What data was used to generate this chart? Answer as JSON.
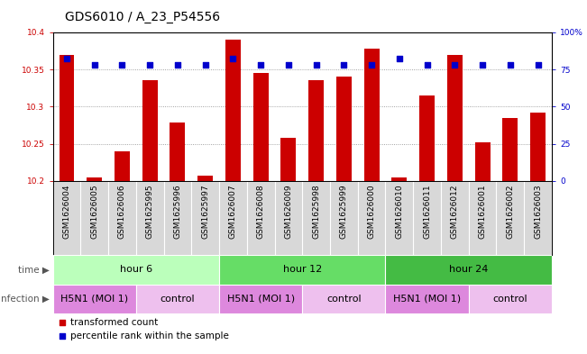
{
  "title": "GDS6010 / A_23_P54556",
  "samples": [
    "GSM1626004",
    "GSM1626005",
    "GSM1626006",
    "GSM1625995",
    "GSM1625996",
    "GSM1625997",
    "GSM1626007",
    "GSM1626008",
    "GSM1626009",
    "GSM1625998",
    "GSM1625999",
    "GSM1626000",
    "GSM1626010",
    "GSM1626011",
    "GSM1626012",
    "GSM1626001",
    "GSM1626002",
    "GSM1626003"
  ],
  "bar_values": [
    10.37,
    10.205,
    10.24,
    10.335,
    10.278,
    10.207,
    10.39,
    10.345,
    10.258,
    10.335,
    10.34,
    10.378,
    10.205,
    10.315,
    10.37,
    10.252,
    10.284,
    10.292
  ],
  "dot_values": [
    82,
    78,
    78,
    78,
    78,
    78,
    82,
    78,
    78,
    78,
    78,
    78,
    82,
    78,
    78,
    78,
    78,
    78
  ],
  "ylim_left": [
    10.2,
    10.4
  ],
  "ylim_right": [
    0,
    100
  ],
  "yticks_left": [
    10.2,
    10.25,
    10.3,
    10.35,
    10.4
  ],
  "yticks_right": [
    0,
    25,
    50,
    75,
    100
  ],
  "ytick_labels_left": [
    "10.2",
    "10.25",
    "10.3",
    "10.35",
    "10.4"
  ],
  "ytick_labels_right": [
    "0",
    "25",
    "50",
    "75",
    "100%"
  ],
  "bar_color": "#CC0000",
  "dot_color": "#0000CC",
  "grid_color": "#888888",
  "sample_bg": "#D8D8D8",
  "time_groups": [
    {
      "label": "hour 6",
      "start": 0,
      "end": 6,
      "color": "#BBFFBB"
    },
    {
      "label": "hour 12",
      "start": 6,
      "end": 12,
      "color": "#66DD66"
    },
    {
      "label": "hour 24",
      "start": 12,
      "end": 18,
      "color": "#44BB44"
    }
  ],
  "infection_groups": [
    {
      "label": "H5N1 (MOI 1)",
      "start": 0,
      "end": 3,
      "color": "#DD88DD"
    },
    {
      "label": "control",
      "start": 3,
      "end": 6,
      "color": "#EEC0EE"
    },
    {
      "label": "H5N1 (MOI 1)",
      "start": 6,
      "end": 9,
      "color": "#DD88DD"
    },
    {
      "label": "control",
      "start": 9,
      "end": 12,
      "color": "#EEC0EE"
    },
    {
      "label": "H5N1 (MOI 1)",
      "start": 12,
      "end": 15,
      "color": "#DD88DD"
    },
    {
      "label": "control",
      "start": 15,
      "end": 18,
      "color": "#EEC0EE"
    }
  ],
  "legend_items": [
    {
      "label": "transformed count",
      "color": "#CC0000",
      "marker": "s"
    },
    {
      "label": "percentile rank within the sample",
      "color": "#0000CC",
      "marker": "s"
    }
  ],
  "time_label": "time",
  "infection_label": "infection",
  "bar_width": 0.55,
  "dot_size": 22,
  "title_fontsize": 10,
  "tick_fontsize": 6.5,
  "label_fontsize": 7.5,
  "group_fontsize": 8,
  "legend_fontsize": 7.5
}
